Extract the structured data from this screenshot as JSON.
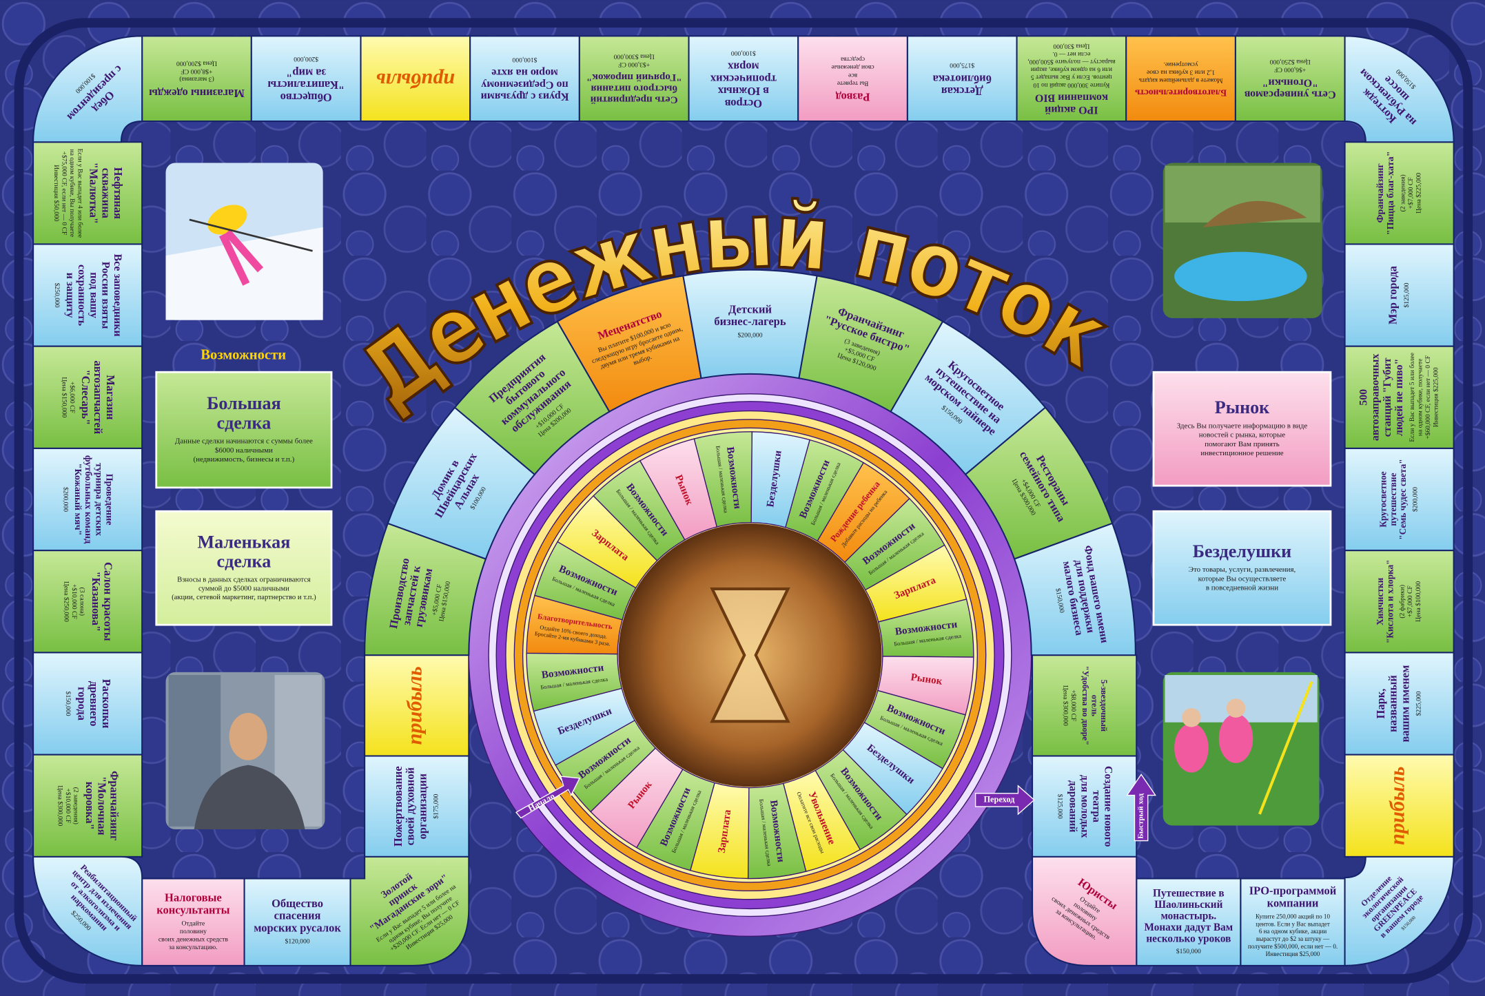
{
  "title": "Денежный поток",
  "opportunities_label": "Возможности",
  "outer_track": {
    "top_left": {
      "title": [
        "Обед",
        "с президентом"
      ],
      "details": [
        "$100,000"
      ]
    },
    "top_right": {
      "title": [
        "Коттедж",
        "на Рублевском",
        "шоссе"
      ],
      "details": [
        "$150,000"
      ]
    },
    "bottom_left": {
      "title": [
        "Реабилитационный",
        "центр для излечения",
        "от алкоголизма и",
        "наркомании"
      ],
      "details": [
        "$250,000"
      ]
    },
    "bottom_right": {
      "title": [
        "Отделение",
        "экологической",
        "организации",
        "GREENPEACE",
        "в вашем городе"
      ],
      "details": [
        "$150,000"
      ]
    },
    "top_row": [
      {
        "title": [
          "Магазины одежды"
        ],
        "details": [
          "(3 магазина)",
          "+$8,000 CF",
          "Цена $200,000"
        ]
      },
      {
        "title": [
          "Общество",
          "\"Капиталисты",
          "за мир\""
        ],
        "details": [
          "$200,000"
        ]
      },
      {
        "title": [
          "прибыль"
        ]
      },
      {
        "title": [
          "Круиз с друзьями",
          "по Средиземному",
          "морю на яхте"
        ],
        "details": [
          "$100,000"
        ]
      },
      {
        "title": [
          "Сеть предприятий",
          "быстрого питания",
          "\"Горячий пирожок\""
        ],
        "details": [
          "+$3,000 CF",
          "Цена $300,000"
        ]
      },
      {
        "title": [
          "Остров",
          "в Южных",
          "тропических",
          "морях"
        ],
        "details": [
          "$100,000"
        ]
      },
      {
        "title": [
          "Развод"
        ],
        "details": [
          "Вы теряете",
          "все",
          "свои денежные",
          "средства"
        ]
      },
      {
        "title": [
          "Детская",
          "библиотека"
        ],
        "details": [
          "$175,000"
        ]
      },
      {
        "title": [
          "IPO акций",
          "компании BIO"
        ],
        "details": [
          "Купите 300,000 акций по 10",
          "центов. Если у Вас выпадет 5",
          "или 6 на одном кубике, акции",
          "вырастут — получите $500,000,",
          "если нет — 0.",
          "Цена $30,000"
        ]
      },
      {
        "title": [
          "Благотворительность"
        ],
        "details": [
          "Можете в дальнейшем кидать",
          "1,2 или 3 кубика на свое",
          "усмотрение."
        ]
      },
      {
        "title": [
          "Сеть универсамов",
          "\"Огоньки\""
        ],
        "details": [
          "+$6,000 CF",
          "Цена $250,000"
        ]
      }
    ],
    "left_column": [
      {
        "title": [
          "Нефтяная",
          "скважина",
          "\"Малютка\""
        ],
        "details": [
          "Если у Вас выпадет 4 или более",
          "на одном кубике, Вы получаете",
          "+$75,000 CF, если нет — 0 CF",
          "Инвестиция $50,000"
        ]
      },
      {
        "title": [
          "Все заповедники",
          "России взяты",
          "под вашу",
          "сохранность",
          "и защиту"
        ],
        "details": [
          "$250,000"
        ]
      },
      {
        "title": [
          "Магазин",
          "автозапчастей",
          "\"Слесарь\""
        ],
        "details": [
          "+$6,000 CF",
          "Цена $150,000"
        ]
      },
      {
        "title": [
          "Проведение",
          "турнира детских",
          "футбольных команд",
          "\"Кожаный мяч\""
        ],
        "details": [
          "$200,000"
        ]
      },
      {
        "title": [
          "Салон красоты",
          "\"Казанова\""
        ],
        "details": [
          "(3 салона)",
          "+$10,000 CF",
          "Цена $250,000"
        ]
      },
      {
        "title": [
          "Раскопки",
          "древнего",
          "города"
        ],
        "details": [
          "$150,000"
        ]
      },
      {
        "title": [
          "Франчайзинг",
          "\"Молочная",
          "коровка\""
        ],
        "details": [
          "(2 заведения)",
          "+$10,000 CF",
          "Цена $300,000"
        ]
      }
    ],
    "right_column": [
      {
        "title": [
          "Франчайзинг",
          "\"Пицца благ-хата\""
        ],
        "details": [
          "(2 заведения)",
          "+$7,000 CF",
          "Цена $225,000"
        ]
      },
      {
        "title": [
          "Мэр города"
        ],
        "details": [
          "$125,000"
        ]
      },
      {
        "title": [
          "500",
          "автозаправочных",
          "станций \"Губит",
          "людей не пиво\""
        ],
        "details": [
          "Если у Вас выпадет 5 или более",
          "на одном кубике, получаете",
          "+$60,000 CF, если нет — 0 CF",
          "Инвестиция $225,000"
        ]
      },
      {
        "title": [
          "Кругосветное",
          "путешествие",
          "\"Семь чудес света\""
        ],
        "details": [
          "$200,000"
        ]
      },
      {
        "title": [
          "Химчистки",
          "\"Кислота и хлорка\""
        ],
        "details": [
          "(2 фабрики)",
          "+$7,000 CF",
          "Цена $100,000"
        ]
      },
      {
        "title": [
          "Парк,",
          "названный",
          "вашим именем"
        ],
        "details": [
          "$225,000"
        ]
      },
      {
        "title": [
          "прибыль"
        ]
      }
    ],
    "bottom_left_row": [
      {
        "title": [
          "Налоговые",
          "консультанты"
        ],
        "details": [
          "Отдайте",
          "половину",
          "своих денежных средств",
          "за консультацию."
        ]
      },
      {
        "title": [
          "Общество",
          "спасения",
          "морских русалок"
        ],
        "details": [
          "$120,000"
        ]
      }
    ],
    "bottom_right_row": [
      {
        "title": [
          "Путешествие в",
          "Шаолиньский",
          "монастырь.",
          "Монахи дадут Вам",
          "несколько уроков"
        ],
        "details": [
          "$150,000"
        ]
      },
      {
        "title": [
          "IPO-программой",
          "компании"
        ],
        "details": [
          "Купите 250,000 акций по 10",
          "центов. Если у Вас выпадет",
          "6 на одном кубике, акции",
          "вырастут до $2 за штуку —",
          "получите $500,000, если нет — 0.",
          "Инвестиция $25,000"
        ]
      }
    ]
  },
  "inner_track": {
    "left_column": [
      {
        "title": [
          "прибыль"
        ]
      },
      {
        "title": [
          "Пожертвование",
          "своей духовной",
          "организации"
        ],
        "details": [
          "$175,000"
        ]
      }
    ],
    "arch": [
      {
        "title": [
          "Производство",
          "запчастей к",
          "грузовикам"
        ],
        "details": [
          "+$5,000 CF",
          "Цена $150,000"
        ]
      },
      {
        "title": [
          "Домик в",
          "Швейцарских",
          "Альпах"
        ],
        "details": [
          "$100,000"
        ]
      },
      {
        "title": [
          "Предприятия",
          "бытового",
          "коммунального",
          "обслуживания"
        ],
        "details": [
          "+$10,000 CF",
          "Цена $200,000"
        ]
      },
      {
        "title": [
          "Меценатство"
        ],
        "details": [
          "Вы платите $100,000 и всю",
          "следующую игру бросаете одним,",
          "двумя или тремя кубиками на",
          "выбор."
        ]
      },
      {
        "title": [
          "Детский",
          "бизнес-лагерь"
        ],
        "details": [
          "$200,000"
        ]
      },
      {
        "title": [
          "Франчайзинг",
          "\"Русское бистро\""
        ],
        "details": [
          "(3 заведения)",
          "+$5,000 CF",
          "Цена $120,000"
        ]
      },
      {
        "title": [
          "Кругосветное",
          "путешествие на",
          "морском лайнере"
        ],
        "details": [
          "$150,000"
        ]
      },
      {
        "title": [
          "Рестораны",
          "семейного типа"
        ],
        "details": [
          "+$4,000 CF",
          "Цена $300,000"
        ]
      },
      {
        "title": [
          "Фонд вашего имени",
          "для поддержки",
          "малого бизнеса"
        ],
        "details": [
          "$150,000"
        ]
      }
    ],
    "right_column": [
      {
        "title": [
          "5-звездочный",
          "отель",
          "\"Удобства во дворе\""
        ],
        "details": [
          "+$8,000 CF",
          "Цена $300,000"
        ]
      },
      {
        "title": [
          "Создание нового",
          "театра",
          "для молодых",
          "дарований"
        ],
        "details": [
          "$125,000"
        ]
      }
    ],
    "bottom_left": {
      "title": [
        "Золотой",
        "прииск",
        "\"Магаданские зори\""
      ],
      "details": [
        "Если у Вас выпадет 5 или более на",
        "одном кубике, Вы получите",
        "+$20,000 CF. Если нет — 0 CF",
        "Инвестиция $25,000"
      ]
    },
    "bottom_right": {
      "title": [
        "Юристы"
      ],
      "details": [
        "Отдайте",
        "половину",
        "своих денежных средств",
        "за консультацию."
      ]
    }
  },
  "wheel": {
    "segments": [
      {
        "title": [
          "Возможности"
        ],
        "details": [
          "Большая / маленькая сделка"
        ]
      },
      {
        "title": [
          "Безделушки"
        ]
      },
      {
        "title": [
          "Возможности"
        ],
        "details": [
          "Большая / маленькая сделка"
        ]
      },
      {
        "title": [
          "Рождение ребенка"
        ],
        "details": [
          "Добавьте расходы на ребенка"
        ]
      },
      {
        "title": [
          "Возможности"
        ],
        "details": [
          "Большая / маленькая сделка"
        ]
      },
      {
        "title": [
          "Зарплата"
        ]
      },
      {
        "title": [
          "Возможности"
        ],
        "details": [
          "Большая / маленькая сделка"
        ]
      },
      {
        "title": [
          "Рынок"
        ]
      },
      {
        "title": [
          "Возможности"
        ],
        "details": [
          "Большая / маленькая сделка"
        ]
      },
      {
        "title": [
          "Безделушки"
        ]
      },
      {
        "title": [
          "Возможности"
        ],
        "details": [
          "Большая / маленькая сделка"
        ]
      },
      {
        "title": [
          "Увольнение"
        ],
        "details": [
          "Оплатите все свои расходы"
        ]
      },
      {
        "title": [
          "Возможности"
        ],
        "details": [
          "Большая / маленькая сделка"
        ]
      },
      {
        "title": [
          "Зарплата"
        ]
      },
      {
        "title": [
          "Возможности"
        ],
        "details": [
          "Большая / маленькая сделка"
        ]
      },
      {
        "title": [
          "Рынок"
        ]
      },
      {
        "title": [
          "Возможности"
        ],
        "details": [
          "Большая / маленькая сделка"
        ]
      },
      {
        "title": [
          "Безделушки"
        ]
      },
      {
        "title": [
          "Возможности"
        ],
        "details": [
          "Большая / маленькая сделка"
        ]
      },
      {
        "title": [
          "Благотворительность"
        ],
        "details": [
          "Отдайте 10% своего дохода.",
          "Бросайте 2-мя кубиками 3 раза."
        ]
      },
      {
        "title": [
          "Возможности"
        ],
        "details": [
          "Большая / маленькая сделка"
        ]
      },
      {
        "title": [
          "Зарплата"
        ]
      },
      {
        "title": [
          "Возможности"
        ],
        "details": [
          "Большая / маленькая сделка"
        ]
      },
      {
        "title": [
          "Рынок"
        ]
      }
    ]
  },
  "cards": [
    {
      "title": [
        "Большая",
        "сделка"
      ],
      "details": [
        "Данные сделки начинаются с суммы более",
        "$6000 наличными",
        "(недвижимость, бизнесы и т.п.)"
      ]
    },
    {
      "title": [
        "Маленькая",
        "сделка"
      ],
      "details": [
        "Взносы в данных сделках ограничиваются",
        "суммой до $5000 наличными",
        "(акции, сетевой маркетинг, партнерство и т.п.)"
      ]
    },
    {
      "title": [
        "Рынок"
      ],
      "details": [
        "Здесь Вы получаете информацию в виде",
        "новостей с рынка, которые",
        "помогают Вам принять",
        "инвестиционное решение"
      ]
    },
    {
      "title": [
        "Безделушки"
      ],
      "details": [
        "Это товары, услуги, развлечения,",
        "которые Вы осуществляете",
        "в повседневной жизни"
      ]
    }
  ],
  "markers": {
    "start": "Начало",
    "transfer": "Переход",
    "fast_track": "Быстрый ход"
  }
}
